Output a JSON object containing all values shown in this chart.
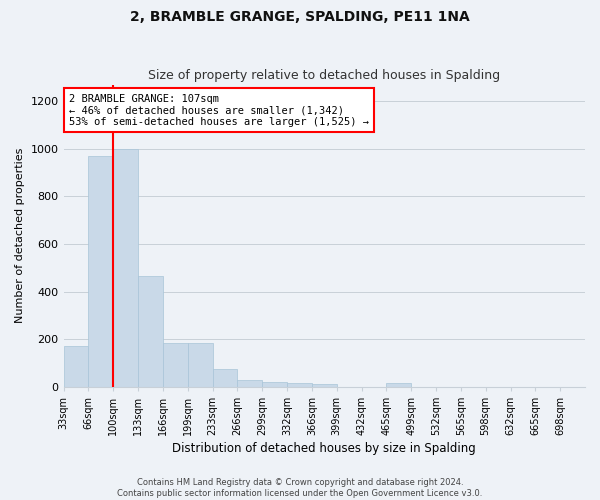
{
  "title": "2, BRAMBLE GRANGE, SPALDING, PE11 1NA",
  "subtitle": "Size of property relative to detached houses in Spalding",
  "xlabel": "Distribution of detached houses by size in Spalding",
  "ylabel": "Number of detached properties",
  "footer_line1": "Contains HM Land Registry data © Crown copyright and database right 2024.",
  "footer_line2": "Contains public sector information licensed under the Open Government Licence v3.0.",
  "bin_labels": [
    "33sqm",
    "66sqm",
    "100sqm",
    "133sqm",
    "166sqm",
    "199sqm",
    "233sqm",
    "266sqm",
    "299sqm",
    "332sqm",
    "366sqm",
    "399sqm",
    "432sqm",
    "465sqm",
    "499sqm",
    "532sqm",
    "565sqm",
    "598sqm",
    "632sqm",
    "665sqm",
    "698sqm"
  ],
  "bar_heights": [
    170,
    970,
    1000,
    465,
    185,
    185,
    75,
    30,
    20,
    15,
    10,
    0,
    0,
    15,
    0,
    0,
    0,
    0,
    0,
    0,
    0
  ],
  "bar_color": "#c9d9e8",
  "bar_edge_color": "#a8c4d8",
  "red_line_x_label": "100sqm",
  "annotation_text": "2 BRAMBLE GRANGE: 107sqm\n← 46% of detached houses are smaller (1,342)\n53% of semi-detached houses are larger (1,525) →",
  "annotation_box_color": "white",
  "annotation_box_edge_color": "red",
  "ylim": [
    0,
    1270
  ],
  "yticks": [
    0,
    200,
    400,
    600,
    800,
    1000,
    1200
  ],
  "grid_color": "#c8d0d8",
  "background_color": "#eef2f7",
  "title_fontsize": 10,
  "subtitle_fontsize": 9,
  "ylabel_fontsize": 8,
  "xlabel_fontsize": 8.5,
  "footer_fontsize": 6,
  "annot_fontsize": 7.5
}
